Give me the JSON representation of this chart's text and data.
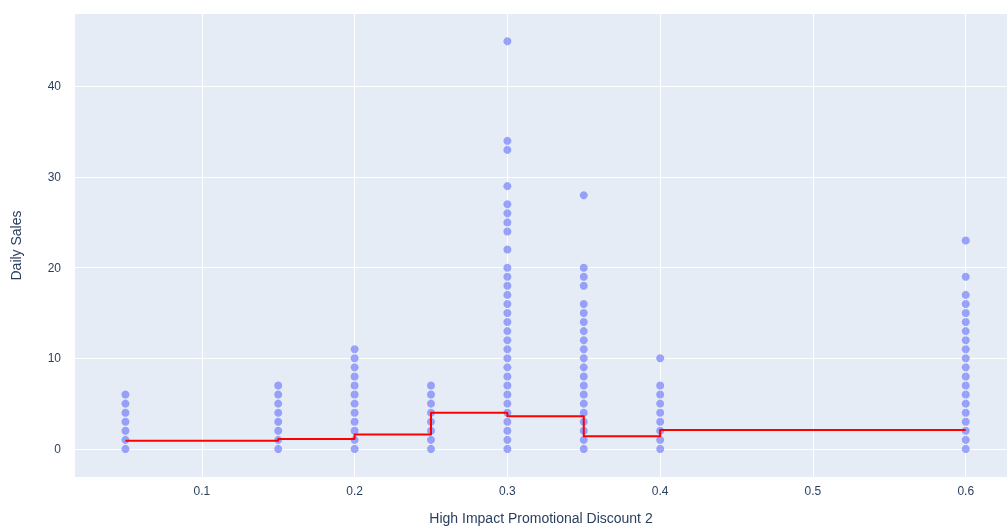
{
  "chart_data": {
    "type": "scatter",
    "xlabel": "High Impact Promotional Discount 2",
    "ylabel": "Daily Sales",
    "xlim": [
      0.017,
      0.627
    ],
    "ylim": [
      -3.1,
      48
    ],
    "xticks": [
      0.1,
      0.2,
      0.3,
      0.4,
      0.5,
      0.6
    ],
    "yticks": [
      0,
      10,
      20,
      30,
      40
    ],
    "grid": true,
    "marker": "circle",
    "series": [
      {
        "color": "#636efa",
        "x": [
          0.05,
          0.05,
          0.05,
          0.05,
          0.05,
          0.05,
          0.05,
          0.15,
          0.15,
          0.15,
          0.15,
          0.15,
          0.15,
          0.15,
          0.15,
          0.2,
          0.2,
          0.2,
          0.2,
          0.2,
          0.2,
          0.2,
          0.2,
          0.2,
          0.2,
          0.2,
          0.2,
          0.25,
          0.25,
          0.25,
          0.25,
          0.25,
          0.25,
          0.25,
          0.25,
          0.3,
          0.3,
          0.3,
          0.3,
          0.3,
          0.3,
          0.3,
          0.3,
          0.3,
          0.3,
          0.3,
          0.3,
          0.3,
          0.3,
          0.3,
          0.3,
          0.3,
          0.3,
          0.3,
          0.3,
          0.3,
          0.3,
          0.3,
          0.3,
          0.3,
          0.3,
          0.3,
          0.3,
          0.3,
          0.3,
          0.35,
          0.35,
          0.35,
          0.35,
          0.35,
          0.35,
          0.35,
          0.35,
          0.35,
          0.35,
          0.35,
          0.35,
          0.35,
          0.35,
          0.35,
          0.35,
          0.35,
          0.35,
          0.35,
          0.35,
          0.35,
          0.4,
          0.4,
          0.4,
          0.4,
          0.4,
          0.4,
          0.4,
          0.4,
          0.4,
          0.6,
          0.6,
          0.6,
          0.6,
          0.6,
          0.6,
          0.6,
          0.6,
          0.6,
          0.6,
          0.6,
          0.6,
          0.6,
          0.6,
          0.6,
          0.6,
          0.6,
          0.6,
          0.6,
          0.6
        ],
        "values": [
          0,
          1,
          2,
          3,
          4,
          5,
          6,
          0,
          1,
          2,
          3,
          4,
          5,
          6,
          7,
          0,
          1,
          2,
          3,
          4,
          5,
          6,
          7,
          8,
          9,
          10,
          11,
          0,
          1,
          2,
          3,
          4,
          5,
          6,
          7,
          0,
          1,
          2,
          3,
          4,
          5,
          6,
          7,
          8,
          9,
          10,
          11,
          12,
          13,
          14,
          15,
          16,
          17,
          18,
          19,
          20,
          22,
          24,
          25,
          26,
          27,
          29,
          33,
          34,
          45,
          0,
          1,
          2,
          3,
          4,
          5,
          6,
          7,
          8,
          9,
          10,
          11,
          12,
          13,
          14,
          15,
          16,
          18,
          19,
          20,
          28,
          0,
          1,
          2,
          3,
          4,
          5,
          6,
          7,
          10,
          0,
          1,
          2,
          3,
          4,
          5,
          6,
          7,
          8,
          9,
          10,
          11,
          12,
          13,
          14,
          15,
          16,
          17,
          19,
          23
        ]
      },
      {
        "type": "step",
        "color": "#ff0000",
        "marker": "none",
        "x": [
          0.05,
          0.15,
          0.2,
          0.25,
          0.3,
          0.35,
          0.4,
          0.6
        ],
        "values": [
          0.9,
          1.1,
          1.6,
          4,
          3.6,
          1.4,
          2.1,
          2.1
        ]
      }
    ]
  }
}
